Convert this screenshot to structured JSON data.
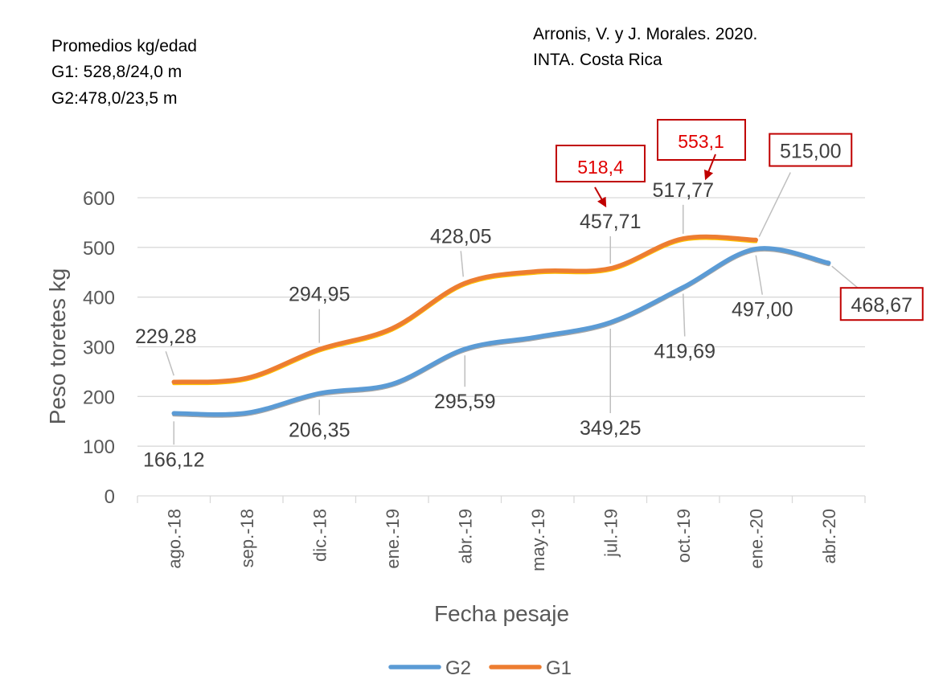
{
  "notes": {
    "top_left": [
      "Promedios kg/edad",
      "G1: 528,8/24,0 m",
      "G2:478,0/23,5 m"
    ],
    "top_right": [
      "Arronis, V. y J. Morales. 2020.",
      "INTA. Costa Rica"
    ]
  },
  "chart_data": {
    "type": "line",
    "title": "",
    "xlabel": "Fecha pesaje",
    "ylabel": "Peso toretes kg",
    "ylim": [
      0,
      600
    ],
    "yticks": [
      "0",
      "100",
      "200",
      "300",
      "400",
      "500",
      "600"
    ],
    "grid": true,
    "legend_position": "bottom",
    "categories": [
      "ago.-18",
      "sep.-18",
      "dic.-18",
      "ene.-19",
      "abr.-19",
      "may.-19",
      "jul.-19",
      "oct.-19",
      "ene.-20",
      "abr.-20"
    ],
    "series": [
      {
        "name": "G2",
        "color": "#5B9BD5",
        "values": [
          166.12,
          167,
          206.35,
          225,
          295.59,
          320,
          349.25,
          419.69,
          497.0,
          468.67
        ]
      },
      {
        "name": "G1",
        "color": "#ED7D31",
        "values": [
          229.28,
          237,
          294.95,
          337,
          428.05,
          452,
          457.71,
          517.77,
          515.0,
          null
        ]
      }
    ],
    "data_labels": [
      {
        "series": "G1",
        "index": 0,
        "text": "229,28"
      },
      {
        "series": "G2",
        "index": 0,
        "text": "166,12"
      },
      {
        "series": "G1",
        "index": 2,
        "text": "294,95"
      },
      {
        "series": "G2",
        "index": 2,
        "text": "206,35"
      },
      {
        "series": "G1",
        "index": 4,
        "text": "428,05"
      },
      {
        "series": "G2",
        "index": 4,
        "text": "295,59"
      },
      {
        "series": "G1",
        "index": 6,
        "text": "457,71"
      },
      {
        "series": "G2",
        "index": 6,
        "text": "349,25"
      },
      {
        "series": "G1",
        "index": 7,
        "text": "517,77"
      },
      {
        "series": "G2",
        "index": 7,
        "text": "419,69"
      },
      {
        "series": "G1",
        "index": 8,
        "text": "515,00"
      },
      {
        "series": "G2",
        "index": 8,
        "text": "497,00"
      },
      {
        "series": "G2",
        "index": 9,
        "text": "468,67"
      }
    ],
    "annotations": [
      {
        "text": "518,4",
        "target_category": "jul.-19",
        "color": "#e00000"
      },
      {
        "text": "553,1",
        "target_category": "oct.-19",
        "color": "#e00000"
      }
    ]
  }
}
